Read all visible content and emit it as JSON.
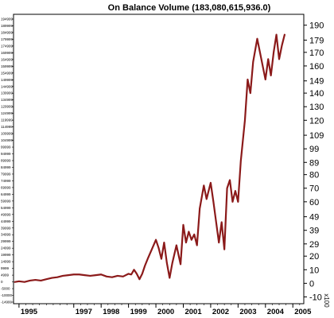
{
  "chart_data": {
    "type": "line",
    "title": "On Balance Volume (183,080,615,936.0)",
    "y_unit_note": "x100",
    "ylim": [
      -15,
      198
    ],
    "right_ticks": [
      190,
      179,
      170,
      160,
      149,
      140,
      130,
      120,
      109,
      99,
      89,
      80,
      70,
      60,
      49,
      39,
      29,
      20,
      10,
      0,
      -10
    ],
    "left_ticks": [
      "194999",
      "189999",
      "184999",
      "179999",
      "174999",
      "169999",
      "164999",
      "159999",
      "154999",
      "149999",
      "144999",
      "139999",
      "134999",
      "129999",
      "124999",
      "119999",
      "114999",
      "109999",
      "104999",
      "99999",
      "94999",
      "89999",
      "84999",
      "79999",
      "74999",
      "69999",
      "64999",
      "59999",
      "54999",
      "49999",
      "44999",
      "39999",
      "34999",
      "29999",
      "24999",
      "19999",
      "14999",
      "9999",
      "4999",
      "0",
      "-5000",
      "-10000",
      "-14999"
    ],
    "x_ticks": [
      {
        "label": "1995",
        "x": 1995.0
      },
      {
        "label": "1997",
        "x": 1997.0
      },
      {
        "label": "1998",
        "x": 1998.0
      },
      {
        "label": "1999",
        "x": 1999.0
      },
      {
        "label": "2000",
        "x": 2000.0
      },
      {
        "label": "2001",
        "x": 2001.0
      },
      {
        "label": "2002",
        "x": 2002.0
      },
      {
        "label": "2003",
        "x": 2003.0
      },
      {
        "label": "2004",
        "x": 2004.0
      },
      {
        "label": "2005",
        "x": 2005.0
      }
    ],
    "x_range": [
      1994.8,
      2005.4
    ],
    "series": [
      {
        "color": "#8b1a1a",
        "x": [
          1994.85,
          1995.0,
          1995.2,
          1995.4,
          1995.6,
          1995.8,
          1996.0,
          1996.2,
          1996.4,
          1996.6,
          1996.8,
          1997.0,
          1997.2,
          1997.4,
          1997.6,
          1997.8,
          1998.0,
          1998.2,
          1998.4,
          1998.6,
          1998.8,
          1999.0,
          1999.1,
          1999.2,
          1999.3,
          1999.4,
          1999.5,
          1999.6,
          1999.7,
          1999.85,
          2000.0,
          2000.1,
          2000.2,
          2000.3,
          2000.4,
          2000.5,
          2000.6,
          2000.75,
          2000.9,
          2001.0,
          2001.1,
          2001.2,
          2001.3,
          2001.4,
          2001.5,
          2001.6,
          2001.75,
          2001.85,
          2002.0,
          2002.1,
          2002.2,
          2002.3,
          2002.4,
          2002.5,
          2002.6,
          2002.7,
          2002.8,
          2002.9,
          2003.0,
          2003.1,
          2003.15,
          2003.25,
          2003.35,
          2003.45,
          2003.55,
          2003.7,
          2003.85,
          2004.0,
          2004.1,
          2004.2,
          2004.3,
          2004.4,
          2004.5,
          2004.6,
          2004.7
        ],
        "y": [
          1,
          1.5,
          1,
          2,
          2.5,
          2,
          3,
          4,
          4.5,
          5.5,
          6,
          6.5,
          6.5,
          6,
          5.5,
          6,
          6.5,
          5,
          4.5,
          5.5,
          5,
          7,
          6.5,
          10,
          7,
          3,
          7,
          13,
          18,
          25,
          32,
          26,
          18,
          30,
          15,
          4,
          15,
          28,
          14,
          43,
          30,
          38,
          32,
          36,
          28,
          55,
          72,
          62,
          74,
          60,
          45,
          30,
          45,
          25,
          70,
          76,
          60,
          68,
          60,
          90,
          100,
          120,
          150,
          140,
          163,
          180,
          165,
          150,
          165,
          153,
          170,
          183,
          165,
          175,
          183
        ]
      }
    ]
  }
}
